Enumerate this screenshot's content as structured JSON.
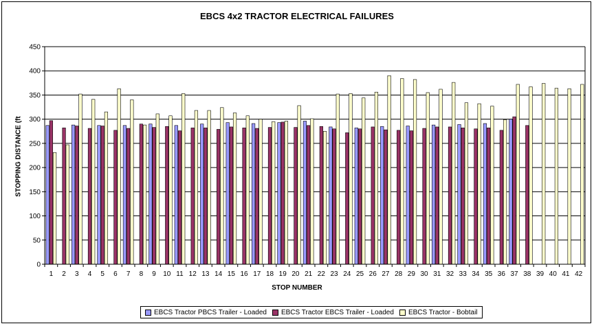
{
  "chart_data": {
    "type": "bar",
    "title": "EBCS 4x2 TRACTOR ELECTRICAL FAILURES",
    "xlabel": "STOP NUMBER",
    "ylabel": "STOPPING DISTANCE (ft",
    "ylim": [
      0,
      450
    ],
    "yticks": [
      0,
      50,
      100,
      150,
      200,
      250,
      300,
      350,
      400,
      450
    ],
    "grid": true,
    "legend_position": "bottom",
    "categories": [
      "1",
      "2",
      "3",
      "4",
      "5",
      "6",
      "7",
      "8",
      "9",
      "10",
      "11",
      "12",
      "13",
      "14",
      "15",
      "16",
      "17",
      "18",
      "19",
      "20",
      "21",
      "22",
      "23",
      "24",
      "25",
      "26",
      "27",
      "28",
      "29",
      "30",
      "31",
      "32",
      "33",
      "34",
      "35",
      "36",
      "37",
      "38",
      "39",
      "40",
      "41",
      "42"
    ],
    "series": [
      {
        "name": "EBCS Tractor PBCS Trailer - Loaded",
        "color": "#9999ff",
        "values": [
          287,
          null,
          288,
          null,
          287,
          null,
          287,
          null,
          290,
          null,
          287,
          null,
          290,
          null,
          293,
          null,
          291,
          null,
          293,
          null,
          296,
          null,
          284,
          null,
          282,
          null,
          285,
          null,
          286,
          null,
          288,
          null,
          289,
          null,
          291,
          null,
          300,
          null,
          null,
          null,
          null,
          null
        ]
      },
      {
        "name": "EBCS Tractor EBCS Trailer - Loaded",
        "color": "#993366",
        "values": [
          297,
          282,
          286,
          281,
          286,
          277,
          281,
          290,
          283,
          285,
          276,
          282,
          282,
          279,
          284,
          282,
          281,
          283,
          294,
          283,
          287,
          285,
          280,
          272,
          280,
          284,
          278,
          277,
          276,
          281,
          284,
          284,
          282,
          280,
          282,
          277,
          305,
          287,
          null,
          null,
          null,
          null
        ]
      },
      {
        "name": "EBCS Tractor - Bobtail",
        "color": "#ffffcc",
        "values": [
          231,
          247,
          352,
          341,
          315,
          363,
          340,
          288,
          311,
          307,
          353,
          318,
          318,
          324,
          313,
          307,
          300,
          295,
          296,
          328,
          301,
          275,
          352,
          353,
          344,
          356,
          390,
          384,
          382,
          355,
          362,
          376,
          334,
          332,
          327,
          299,
          372,
          367,
          374,
          364,
          363,
          372
        ]
      }
    ]
  }
}
